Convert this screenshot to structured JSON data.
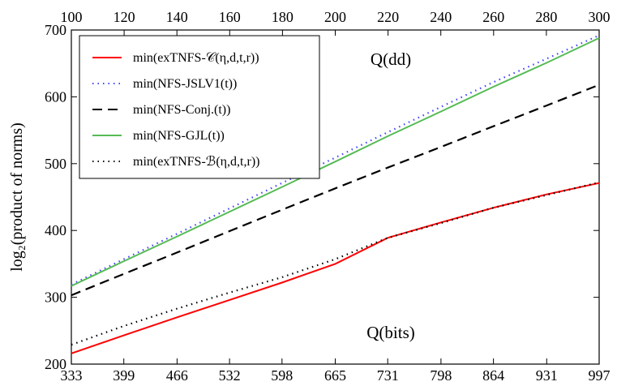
{
  "chart_data": {
    "type": "line",
    "ylabel": "log₂(product of norms)",
    "ylim": [
      200,
      700
    ],
    "yticks": [
      200,
      300,
      400,
      500,
      600,
      700
    ],
    "bottom_axis": {
      "ticks": [
        333,
        399,
        466,
        532,
        598,
        665,
        731,
        798,
        864,
        931,
        997
      ],
      "tick_labels": [
        "333",
        "399",
        "466",
        "532",
        "598",
        "665",
        "731",
        "798",
        "864",
        "931",
        "997"
      ]
    },
    "top_axis": {
      "ticks": [
        100,
        120,
        140,
        160,
        180,
        200,
        220,
        240,
        260,
        280,
        300
      ],
      "tick_labels": [
        "100",
        "120",
        "140",
        "160",
        "180",
        "200",
        "220",
        "240",
        "260",
        "280",
        "300"
      ]
    },
    "x": [
      333,
      399,
      466,
      532,
      598,
      665,
      731,
      798,
      864,
      931,
      997
    ],
    "grid": false,
    "legend_placement": "top-left",
    "annotations": [
      {
        "text": "Q(dd)",
        "near": "top"
      },
      {
        "text": "Q(bits)",
        "near": "bottom"
      }
    ],
    "series": [
      {
        "name": "min(exTNFS-𝒞(η,d,t,r))",
        "color": "#ff0000",
        "style": "solid",
        "values": [
          216,
          243,
          270,
          296,
          322,
          350,
          389,
          412,
          434,
          454,
          471
        ]
      },
      {
        "name": "min(NFS-JSLV1(t))",
        "color": "#4444ff",
        "style": "dotted",
        "values": [
          319,
          357,
          395,
          433,
          471,
          509,
          547,
          585,
          622,
          657,
          692
        ]
      },
      {
        "name": "min(NFS-Conj.(t))",
        "color": "#000000",
        "style": "dashed",
        "values": [
          303,
          335,
          367,
          399,
          431,
          463,
          494,
          525,
          556,
          587,
          618
        ]
      },
      {
        "name": "min(NFS-GJL(t))",
        "color": "#55bb55",
        "style": "solid",
        "values": [
          317,
          354,
          391,
          428,
          465,
          503,
          541,
          578,
          615,
          651,
          688
        ]
      },
      {
        "name": "min(exTNFS-ℬ(η,d,t,r))",
        "color": "#000000",
        "style": "dotted",
        "values": [
          229,
          257,
          283,
          307,
          330,
          357,
          389,
          411,
          434,
          453,
          472
        ]
      }
    ]
  }
}
